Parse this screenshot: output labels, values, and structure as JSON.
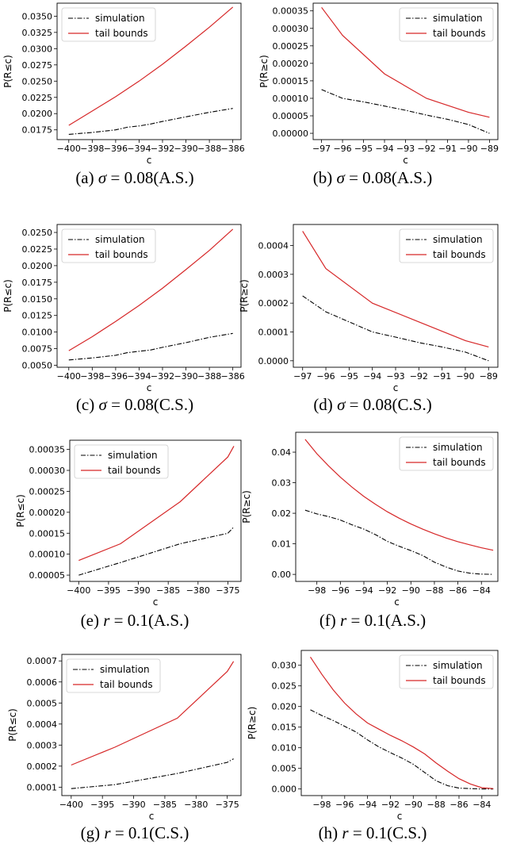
{
  "legend": {
    "simulation": "simulation",
    "tail_bounds": "tail bounds"
  },
  "colors": {
    "simulation": "#000000",
    "tail_bounds": "#d62728"
  },
  "chart_data": [
    {
      "id": "a",
      "type": "line",
      "caption": {
        "letter": "(a) ",
        "symbol": "σ",
        "rest": " = 0.08(A.S.)"
      },
      "xlabel": "c",
      "ylabel": "P(R≤c)",
      "xlim": [
        -401,
        -385.3
      ],
      "ylim": [
        0.016,
        0.037
      ],
      "xticks": [
        -400,
        -398,
        -396,
        -394,
        -392,
        -390,
        -388,
        -386
      ],
      "xtick_labels": [
        "−400",
        "−398",
        "−396",
        "−394",
        "−392",
        "−390",
        "−388",
        "−386"
      ],
      "yticks": [
        0.0175,
        0.02,
        0.0225,
        0.025,
        0.0275,
        0.03,
        0.0325,
        0.035
      ],
      "ytick_labels": [
        "0.0175",
        "0.0200",
        "0.0225",
        "0.0250",
        "0.0275",
        "0.0300",
        "0.0325",
        "0.0350"
      ],
      "legend_position": "top-left",
      "series": [
        {
          "name": "simulation",
          "x": [
            -400,
            -398,
            -396,
            -395,
            -394,
            -393,
            -392,
            -390,
            -388,
            -386
          ],
          "y": [
            0.0168,
            0.0171,
            0.0175,
            0.0179,
            0.0181,
            0.0184,
            0.0188,
            0.0195,
            0.0202,
            0.0208
          ]
        },
        {
          "name": "tail bounds",
          "x": [
            -400,
            -398,
            -396,
            -394,
            -392,
            -390,
            -388,
            -386
          ],
          "y": [
            0.0182,
            0.0204,
            0.0226,
            0.025,
            0.0276,
            0.0304,
            0.0333,
            0.0364
          ]
        }
      ]
    },
    {
      "id": "b",
      "type": "line",
      "caption": {
        "letter": "(b) ",
        "symbol": "σ",
        "rest": " = 0.08(A.S.)"
      },
      "xlabel": "c",
      "ylabel": "P(R≥c)",
      "xlim": [
        -97.4,
        -88.6
      ],
      "ylim": [
        -1.8e-05,
        0.000372
      ],
      "xticks": [
        -97,
        -96,
        -95,
        -94,
        -93,
        -92,
        -91,
        -90,
        -89
      ],
      "xtick_labels": [
        "−97",
        "−96",
        "−95",
        "−94",
        "−93",
        "−92",
        "−91",
        "−90",
        "−89"
      ],
      "yticks": [
        0,
        5e-05,
        0.0001,
        0.00015,
        0.0002,
        0.00025,
        0.0003,
        0.00035
      ],
      "ytick_labels": [
        "0.00000",
        "0.00005",
        "0.00010",
        "0.00015",
        "0.00020",
        "0.00025",
        "0.00030",
        "0.00035"
      ],
      "legend_position": "top-right",
      "series": [
        {
          "name": "simulation",
          "x": [
            -97,
            -96,
            -95,
            -94,
            -93,
            -92,
            -91,
            -90,
            -89
          ],
          "y": [
            0.000125,
            0.0001,
            9e-05,
            7.8e-05,
            6.6e-05,
            5.2e-05,
            4e-05,
            2.5e-05,
            0.0
          ]
        },
        {
          "name": "tail bounds",
          "x": [
            -97,
            -96,
            -94,
            -92,
            -90,
            -89
          ],
          "y": [
            0.00036,
            0.00028,
            0.00017,
            0.0001,
            6e-05,
            4.6e-05
          ]
        }
      ]
    },
    {
      "id": "c",
      "type": "line",
      "caption": {
        "letter": "(c) ",
        "symbol": "σ",
        "rest": " = 0.08(C.S.)"
      },
      "xlabel": "c",
      "ylabel": "P(R≤c)",
      "xlim": [
        -401,
        -385.3
      ],
      "ylim": [
        0.0047,
        0.0262
      ],
      "xticks": [
        -400,
        -398,
        -396,
        -394,
        -392,
        -390,
        -388,
        -386
      ],
      "xtick_labels": [
        "−400",
        "−398",
        "−396",
        "−394",
        "−392",
        "−390",
        "−388",
        "−386"
      ],
      "yticks": [
        0.005,
        0.0075,
        0.01,
        0.0125,
        0.015,
        0.0175,
        0.02,
        0.0225,
        0.025
      ],
      "ytick_labels": [
        "0.0050",
        "0.0075",
        "0.0100",
        "0.0125",
        "0.0150",
        "0.0175",
        "0.0200",
        "0.0225",
        "0.0250"
      ],
      "legend_position": "top-left",
      "series": [
        {
          "name": "simulation",
          "x": [
            -400,
            -398,
            -396,
            -395,
            -394,
            -393,
            -392,
            -390,
            -388,
            -386
          ],
          "y": [
            0.0058,
            0.0061,
            0.0065,
            0.0069,
            0.0071,
            0.0073,
            0.0077,
            0.0084,
            0.0092,
            0.0098
          ]
        },
        {
          "name": "tail bounds",
          "x": [
            -400,
            -398,
            -396,
            -394,
            -392,
            -390,
            -388,
            -386
          ],
          "y": [
            0.0072,
            0.0093,
            0.0116,
            0.014,
            0.0166,
            0.0194,
            0.0223,
            0.0255
          ]
        }
      ]
    },
    {
      "id": "d",
      "type": "line",
      "caption": {
        "letter": "(d) ",
        "symbol": "σ",
        "rest": " = 0.08(C.S.)"
      },
      "xlabel": "c",
      "ylabel": "P(R≥c)",
      "xlim": [
        -97.4,
        -88.6
      ],
      "ylim": [
        -2.25e-05,
        0.000473
      ],
      "xticks": [
        -97,
        -96,
        -95,
        -94,
        -93,
        -92,
        -91,
        -90,
        -89
      ],
      "xtick_labels": [
        "−97",
        "−96",
        "−95",
        "−94",
        "−93",
        "−92",
        "−91",
        "−90",
        "−89"
      ],
      "yticks": [
        0,
        0.0001,
        0.0002,
        0.0003,
        0.0004
      ],
      "ytick_labels": [
        "0.0000",
        "0.0001",
        "0.0002",
        "0.0003",
        "0.0004"
      ],
      "legend_position": "top-right",
      "series": [
        {
          "name": "simulation",
          "x": [
            -97,
            -96,
            -95,
            -94,
            -93,
            -92,
            -91,
            -90,
            -89
          ],
          "y": [
            0.000225,
            0.00017,
            0.000135,
            0.0001,
            8.2e-05,
            6.3e-05,
            4.8e-05,
            3e-05,
            0.0
          ]
        },
        {
          "name": "tail bounds",
          "x": [
            -97,
            -96,
            -94,
            -92,
            -90,
            -89
          ],
          "y": [
            0.00045,
            0.00032,
            0.0002,
            0.000135,
            7e-05,
            4.8e-05
          ]
        }
      ]
    },
    {
      "id": "e",
      "type": "line",
      "caption": {
        "letter": "(e) ",
        "symbol": "r",
        "rest": " = 0.1(A.S.)"
      },
      "xlabel": "c",
      "ylabel": "P(R≤c)",
      "xlim": [
        -401.5,
        -372.8
      ],
      "ylim": [
        3.5e-05,
        0.000372
      ],
      "xticks": [
        -400,
        -395,
        -390,
        -385,
        -380,
        -375
      ],
      "xtick_labels": [
        "−400",
        "−395",
        "−390",
        "−385",
        "−380",
        "−375"
      ],
      "yticks": [
        5e-05,
        0.0001,
        0.00015,
        0.0002,
        0.00025,
        0.0003,
        0.00035
      ],
      "ytick_labels": [
        "0.00005",
        "0.00010",
        "0.00015",
        "0.00020",
        "0.00025",
        "0.00030",
        "0.00035"
      ],
      "legend_position": "top-left",
      "series": [
        {
          "name": "simulation",
          "x": [
            -400,
            -393,
            -383,
            -375,
            -374
          ],
          "y": [
            5e-05,
            8e-05,
            0.000125,
            0.00015,
            0.000165
          ]
        },
        {
          "name": "tail bounds",
          "x": [
            -400,
            -393,
            -383,
            -375,
            -374
          ],
          "y": [
            8.5e-05,
            0.000125,
            0.000225,
            0.000332,
            0.000358
          ]
        }
      ]
    },
    {
      "id": "f",
      "type": "line",
      "caption": {
        "letter": "(f) ",
        "symbol": "r",
        "rest": " = 0.1(A.S.)"
      },
      "xlabel": "c",
      "ylabel": "P(R≥c)",
      "xlim": [
        -99.8,
        -82.6
      ],
      "ylim": [
        -0.0023,
        0.0465
      ],
      "xticks": [
        -98,
        -96,
        -94,
        -92,
        -90,
        -88,
        -86,
        -84
      ],
      "xtick_labels": [
        "−98",
        "−96",
        "−94",
        "−92",
        "−90",
        "−88",
        "−86",
        "−84"
      ],
      "yticks": [
        0,
        0.01,
        0.02,
        0.03,
        0.04
      ],
      "ytick_labels": [
        "0.00",
        "0.01",
        "0.02",
        "0.03",
        "0.04"
      ],
      "legend_position": "top-right",
      "series": [
        {
          "name": "simulation",
          "x": [
            -99,
            -98,
            -97,
            -96,
            -95,
            -94,
            -93,
            -92,
            -91,
            -90,
            -89,
            -88,
            -87,
            -86,
            -85,
            -84,
            -83
          ],
          "y": [
            0.021,
            0.0198,
            0.0189,
            0.0178,
            0.0162,
            0.0148,
            0.013,
            0.0108,
            0.0092,
            0.0078,
            0.0062,
            0.004,
            0.0024,
            0.0011,
            0.0004,
            0.0001,
            0.0
          ]
        },
        {
          "name": "tail bounds",
          "x": [
            -99,
            -98,
            -97,
            -96,
            -95,
            -94,
            -93,
            -92,
            -91,
            -90,
            -89,
            -88,
            -87,
            -86,
            -85,
            -84,
            -83
          ],
          "y": [
            0.0442,
            0.0395,
            0.0355,
            0.0318,
            0.0285,
            0.0255,
            0.0229,
            0.0205,
            0.0184,
            0.0165,
            0.0148,
            0.0133,
            0.0119,
            0.0107,
            0.0097,
            0.0087,
            0.0079
          ]
        }
      ]
    },
    {
      "id": "g",
      "type": "line",
      "caption": {
        "letter": "(g) ",
        "symbol": "r",
        "rest": " = 0.1(C.S.)"
      },
      "xlabel": "c",
      "ylabel": "P(R≤c)",
      "xlim": [
        -401.5,
        -372.8
      ],
      "ylim": [
        6e-05,
        0.000731
      ],
      "xticks": [
        -400,
        -395,
        -390,
        -385,
        -380,
        -375
      ],
      "xtick_labels": [
        "−400",
        "−395",
        "−390",
        "−385",
        "−380",
        "−375"
      ],
      "yticks": [
        0.0001,
        0.0002,
        0.0003,
        0.0004,
        0.0005,
        0.0006,
        0.0007
      ],
      "ytick_labels": [
        "0.0001",
        "0.0002",
        "0.0003",
        "0.0004",
        "0.0005",
        "0.0006",
        "0.0007"
      ],
      "legend_position": "top-left",
      "series": [
        {
          "name": "simulation",
          "x": [
            -400,
            -393,
            -383,
            -375,
            -374
          ],
          "y": [
            9.3e-05,
            0.000112,
            0.000165,
            0.000218,
            0.000235
          ]
        },
        {
          "name": "tail bounds",
          "x": [
            -400,
            -393,
            -383,
            -375,
            -374
          ],
          "y": [
            0.000205,
            0.00029,
            0.000428,
            0.00065,
            0.000698
          ]
        }
      ]
    },
    {
      "id": "h",
      "type": "line",
      "caption": {
        "letter": "(h) ",
        "symbol": "r",
        "rest": " = 0.1(C.S.)"
      },
      "xlabel": "c",
      "ylabel": "P(R≥c)",
      "xlim": [
        -99.8,
        -82.6
      ],
      "ylim": [
        -0.0016,
        0.0336
      ],
      "xticks": [
        -98,
        -96,
        -94,
        -92,
        -90,
        -88,
        -86,
        -84
      ],
      "xtick_labels": [
        "−98",
        "−96",
        "−94",
        "−92",
        "−90",
        "−88",
        "−86",
        "−84"
      ],
      "yticks": [
        0,
        0.005,
        0.01,
        0.015,
        0.02,
        0.025,
        0.03
      ],
      "ytick_labels": [
        "0.000",
        "0.005",
        "0.010",
        "0.015",
        "0.020",
        "0.025",
        "0.030"
      ],
      "legend_position": "top-right",
      "series": [
        {
          "name": "simulation",
          "x": [
            -99,
            -98,
            -97,
            -96,
            -95,
            -94,
            -93,
            -92,
            -91,
            -90,
            -89,
            -88,
            -87,
            -86,
            -85,
            -84,
            -83
          ],
          "y": [
            0.0192,
            0.0178,
            0.0166,
            0.0152,
            0.0138,
            0.0119,
            0.0102,
            0.0088,
            0.0075,
            0.006,
            0.004,
            0.002,
            0.0008,
            0.0002,
            0.0001,
            0.0,
            0.0
          ]
        },
        {
          "name": "tail bounds",
          "x": [
            -99,
            -98,
            -97,
            -96,
            -95,
            -94,
            -93,
            -92,
            -91,
            -90,
            -89,
            -88,
            -87,
            -86,
            -85,
            -84,
            -83
          ],
          "y": [
            0.032,
            0.0278,
            0.024,
            0.0208,
            0.0182,
            0.016,
            0.0145,
            0.013,
            0.0117,
            0.0102,
            0.0085,
            0.0063,
            0.0043,
            0.0025,
            0.0012,
            0.0003,
            0.0001
          ]
        }
      ]
    }
  ]
}
